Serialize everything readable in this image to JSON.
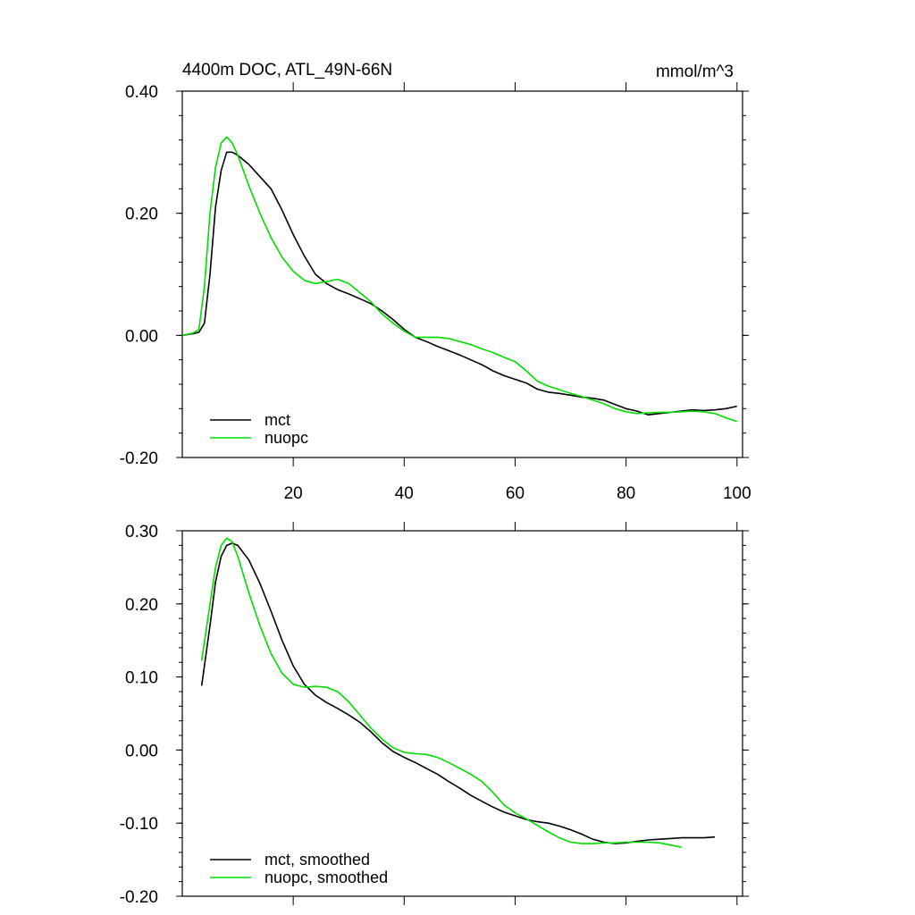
{
  "chart_data": [
    {
      "type": "line",
      "title": "4400m DOC, ATL_49N-66N",
      "units": "mmol/m^3",
      "xlim": [
        0,
        101
      ],
      "ylim": [
        -0.2,
        0.4
      ],
      "xticks": [
        20,
        40,
        60,
        80,
        100
      ],
      "xtick_labels": [
        "20",
        "40",
        "60",
        "80",
        "100"
      ],
      "yticks": [
        -0.2,
        0.0,
        0.2,
        0.4
      ],
      "ytick_labels": [
        "-0.20",
        "0.00",
        "0.20",
        "0.40"
      ],
      "legend_position": "bottom-left",
      "series": [
        {
          "name": "mct",
          "color": "#000000",
          "points": [
            [
              0,
              0.0
            ],
            [
              2,
              0.003
            ],
            [
              3,
              0.005
            ],
            [
              4,
              0.02
            ],
            [
              5,
              0.1
            ],
            [
              6,
              0.21
            ],
            [
              7,
              0.27
            ],
            [
              8,
              0.3
            ],
            [
              9,
              0.3
            ],
            [
              10,
              0.295
            ],
            [
              12,
              0.28
            ],
            [
              14,
              0.26
            ],
            [
              16,
              0.24
            ],
            [
              18,
              0.205
            ],
            [
              20,
              0.165
            ],
            [
              22,
              0.13
            ],
            [
              24,
              0.1
            ],
            [
              26,
              0.085
            ],
            [
              28,
              0.075
            ],
            [
              30,
              0.068
            ],
            [
              32,
              0.06
            ],
            [
              34,
              0.052
            ],
            [
              36,
              0.04
            ],
            [
              38,
              0.026
            ],
            [
              40,
              0.01
            ],
            [
              42,
              -0.003
            ],
            [
              44,
              -0.01
            ],
            [
              46,
              -0.018
            ],
            [
              48,
              -0.025
            ],
            [
              50,
              -0.032
            ],
            [
              52,
              -0.04
            ],
            [
              54,
              -0.048
            ],
            [
              56,
              -0.058
            ],
            [
              58,
              -0.066
            ],
            [
              60,
              -0.072
            ],
            [
              62,
              -0.078
            ],
            [
              64,
              -0.088
            ],
            [
              66,
              -0.093
            ],
            [
              68,
              -0.095
            ],
            [
              70,
              -0.098
            ],
            [
              72,
              -0.101
            ],
            [
              74,
              -0.103
            ],
            [
              76,
              -0.106
            ],
            [
              78,
              -0.113
            ],
            [
              80,
              -0.12
            ],
            [
              82,
              -0.124
            ],
            [
              84,
              -0.13
            ],
            [
              86,
              -0.128
            ],
            [
              88,
              -0.126
            ],
            [
              90,
              -0.124
            ],
            [
              92,
              -0.122
            ],
            [
              94,
              -0.123
            ],
            [
              96,
              -0.122
            ],
            [
              98,
              -0.12
            ],
            [
              100,
              -0.116
            ]
          ]
        },
        {
          "name": "nuopc",
          "color": "#00dd00",
          "points": [
            [
              0,
              0.0
            ],
            [
              1,
              0.002
            ],
            [
              2,
              0.004
            ],
            [
              3,
              0.01
            ],
            [
              4,
              0.08
            ],
            [
              5,
              0.2
            ],
            [
              6,
              0.275
            ],
            [
              7,
              0.315
            ],
            [
              8,
              0.325
            ],
            [
              9,
              0.315
            ],
            [
              10,
              0.295
            ],
            [
              12,
              0.245
            ],
            [
              14,
              0.2
            ],
            [
              16,
              0.16
            ],
            [
              18,
              0.128
            ],
            [
              20,
              0.105
            ],
            [
              22,
              0.09
            ],
            [
              24,
              0.085
            ],
            [
              26,
              0.088
            ],
            [
              28,
              0.092
            ],
            [
              30,
              0.085
            ],
            [
              32,
              0.07
            ],
            [
              34,
              0.055
            ],
            [
              36,
              0.035
            ],
            [
              38,
              0.02
            ],
            [
              40,
              0.007
            ],
            [
              42,
              -0.003
            ],
            [
              44,
              -0.003
            ],
            [
              46,
              -0.003
            ],
            [
              48,
              -0.005
            ],
            [
              50,
              -0.01
            ],
            [
              52,
              -0.015
            ],
            [
              54,
              -0.022
            ],
            [
              56,
              -0.028
            ],
            [
              58,
              -0.036
            ],
            [
              60,
              -0.043
            ],
            [
              62,
              -0.058
            ],
            [
              64,
              -0.075
            ],
            [
              66,
              -0.083
            ],
            [
              68,
              -0.089
            ],
            [
              70,
              -0.095
            ],
            [
              72,
              -0.1
            ],
            [
              74,
              -0.106
            ],
            [
              76,
              -0.112
            ],
            [
              78,
              -0.12
            ],
            [
              80,
              -0.125
            ],
            [
              82,
              -0.128
            ],
            [
              84,
              -0.127
            ],
            [
              86,
              -0.126
            ],
            [
              88,
              -0.126
            ],
            [
              90,
              -0.125
            ],
            [
              92,
              -0.124
            ],
            [
              94,
              -0.125
            ],
            [
              96,
              -0.128
            ],
            [
              98,
              -0.135
            ],
            [
              100,
              -0.141
            ]
          ]
        }
      ]
    },
    {
      "type": "line",
      "title": "",
      "xlim": [
        0,
        101
      ],
      "ylim": [
        -0.2,
        0.3
      ],
      "xticks": [
        20,
        40,
        60,
        80,
        100
      ],
      "xtick_labels": [],
      "yticks": [
        -0.2,
        -0.1,
        0.0,
        0.1,
        0.2,
        0.3
      ],
      "ytick_labels": [
        "-0.20",
        "-0.10",
        "0.00",
        "0.10",
        "0.20",
        "0.30"
      ],
      "legend_position": "bottom-left",
      "series": [
        {
          "name": "mct, smoothed",
          "color": "#000000",
          "points": [
            [
              3.5,
              0.088
            ],
            [
              5,
              0.17
            ],
            [
              6,
              0.23
            ],
            [
              7,
              0.265
            ],
            [
              8,
              0.28
            ],
            [
              9,
              0.283
            ],
            [
              10,
              0.28
            ],
            [
              12,
              0.26
            ],
            [
              14,
              0.228
            ],
            [
              16,
              0.19
            ],
            [
              18,
              0.15
            ],
            [
              20,
              0.115
            ],
            [
              22,
              0.09
            ],
            [
              24,
              0.075
            ],
            [
              26,
              0.065
            ],
            [
              28,
              0.057
            ],
            [
              30,
              0.048
            ],
            [
              32,
              0.038
            ],
            [
              34,
              0.025
            ],
            [
              36,
              0.01
            ],
            [
              38,
              -0.002
            ],
            [
              40,
              -0.01
            ],
            [
              42,
              -0.017
            ],
            [
              44,
              -0.025
            ],
            [
              46,
              -0.033
            ],
            [
              48,
              -0.043
            ],
            [
              50,
              -0.052
            ],
            [
              52,
              -0.062
            ],
            [
              54,
              -0.07
            ],
            [
              56,
              -0.078
            ],
            [
              58,
              -0.085
            ],
            [
              60,
              -0.09
            ],
            [
              62,
              -0.095
            ],
            [
              64,
              -0.098
            ],
            [
              66,
              -0.1
            ],
            [
              68,
              -0.104
            ],
            [
              70,
              -0.109
            ],
            [
              72,
              -0.115
            ],
            [
              74,
              -0.122
            ],
            [
              76,
              -0.126
            ],
            [
              78,
              -0.128
            ],
            [
              80,
              -0.127
            ],
            [
              82,
              -0.125
            ],
            [
              84,
              -0.123
            ],
            [
              86,
              -0.122
            ],
            [
              88,
              -0.121
            ],
            [
              90,
              -0.12
            ],
            [
              92,
              -0.12
            ],
            [
              94,
              -0.12
            ],
            [
              96,
              -0.119
            ]
          ]
        },
        {
          "name": "nuopc, smoothed",
          "color": "#00dd00",
          "points": [
            [
              3.5,
              0.122
            ],
            [
              5,
              0.2
            ],
            [
              6,
              0.25
            ],
            [
              7,
              0.28
            ],
            [
              8,
              0.29
            ],
            [
              9,
              0.285
            ],
            [
              10,
              0.265
            ],
            [
              12,
              0.215
            ],
            [
              14,
              0.17
            ],
            [
              16,
              0.132
            ],
            [
              18,
              0.105
            ],
            [
              20,
              0.09
            ],
            [
              22,
              0.086
            ],
            [
              24,
              0.087
            ],
            [
              26,
              0.086
            ],
            [
              28,
              0.08
            ],
            [
              30,
              0.066
            ],
            [
              32,
              0.048
            ],
            [
              34,
              0.03
            ],
            [
              36,
              0.015
            ],
            [
              38,
              0.003
            ],
            [
              40,
              -0.003
            ],
            [
              42,
              -0.005
            ],
            [
              44,
              -0.006
            ],
            [
              46,
              -0.01
            ],
            [
              48,
              -0.017
            ],
            [
              50,
              -0.025
            ],
            [
              52,
              -0.033
            ],
            [
              54,
              -0.043
            ],
            [
              56,
              -0.058
            ],
            [
              58,
              -0.075
            ],
            [
              60,
              -0.086
            ],
            [
              62,
              -0.094
            ],
            [
              64,
              -0.103
            ],
            [
              66,
              -0.112
            ],
            [
              68,
              -0.12
            ],
            [
              70,
              -0.126
            ],
            [
              72,
              -0.128
            ],
            [
              74,
              -0.128
            ],
            [
              76,
              -0.127
            ],
            [
              78,
              -0.127
            ],
            [
              80,
              -0.126
            ],
            [
              82,
              -0.126
            ],
            [
              84,
              -0.126
            ],
            [
              86,
              -0.127
            ],
            [
              88,
              -0.13
            ],
            [
              90,
              -0.133
            ]
          ]
        }
      ]
    }
  ]
}
